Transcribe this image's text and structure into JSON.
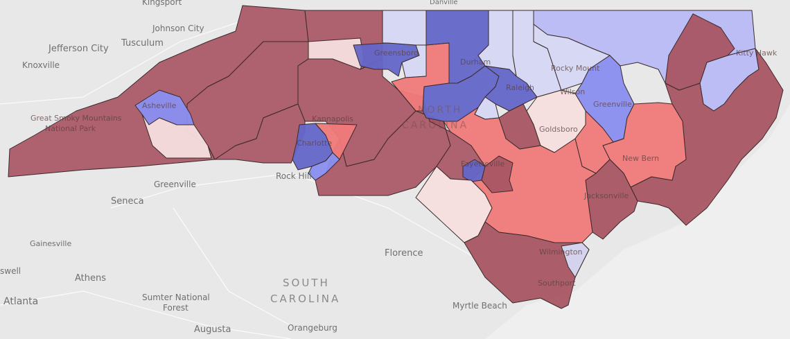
{
  "colors": {
    "strong_republican": "#a85563",
    "republican": "#f07a7a",
    "lean_republican": "#f5dede",
    "lean_democrat": "#d6d8f4",
    "democrat": "#8a8ef0",
    "strong_democrat": "#6466c8",
    "water": "#ececec",
    "land": "#e6e6e6"
  },
  "labels": {
    "state_sc": "SOUTH",
    "state_sc2": "CAROLINA",
    "state_nc": "NORTH",
    "state_nc2": "CAROLINA",
    "kingsport": "Kingsport",
    "johnson_city": "Johnson City",
    "jefferson_city": "Jefferson City",
    "tusculum": "Tusculum",
    "knoxville": "Knoxville",
    "smoky1": "Great Smoky Mountains",
    "smoky2": "National Park",
    "asheville": "Asheville",
    "greenville_sc": "Greenville",
    "seneca": "Seneca",
    "gainesville": "Gainesville",
    "athens": "Athens",
    "atlanta": "Atlanta",
    "sumter1": "Sumter National",
    "sumter2": "Forest",
    "augusta": "Augusta",
    "orangeburg": "Orangeburg",
    "florence": "Florence",
    "myrtle_beach": "Myrtle Beach",
    "rock_hill": "Rock Hill",
    "charlotte": "Charlotte",
    "kannapolis": "Kannapolis",
    "greensboro": "Greensboro",
    "durham": "Durham",
    "raleigh": "Raleigh",
    "danville": "Danville",
    "rocky_mount": "Rocky Mount",
    "wilson": "Wilson",
    "greenville_nc": "Greenville",
    "goldsboro": "Goldsboro",
    "fayetteville": "Fayetteville",
    "new_bern": "New Bern",
    "jacksonville": "Jacksonville",
    "wilmington": "Wilmington",
    "southport": "Southport",
    "kitty_hawk": "Kitty Hawk",
    "roswell": "swell"
  }
}
